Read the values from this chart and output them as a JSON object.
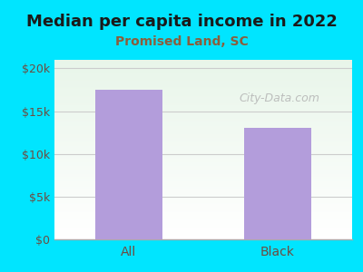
{
  "title": "Median per capita income in 2022",
  "subtitle": "Promised Land, SC",
  "categories": [
    "All",
    "Black"
  ],
  "values": [
    17500,
    13000
  ],
  "bar_color": "#b39ddb",
  "background_color": "#00e5ff",
  "plot_bg_top": "#e8f5e9",
  "plot_bg_bottom": "#ffffff",
  "title_color": "#1a1a1a",
  "subtitle_color": "#8b5e3c",
  "tick_color": "#6d4c41",
  "ylim": [
    0,
    21000
  ],
  "yticks": [
    0,
    5000,
    10000,
    15000,
    20000
  ],
  "ytick_labels": [
    "$0",
    "$5k",
    "$10k",
    "$15k",
    "$20k"
  ],
  "watermark": "City-Data.com",
  "watermark_color": "#b0b0b0"
}
